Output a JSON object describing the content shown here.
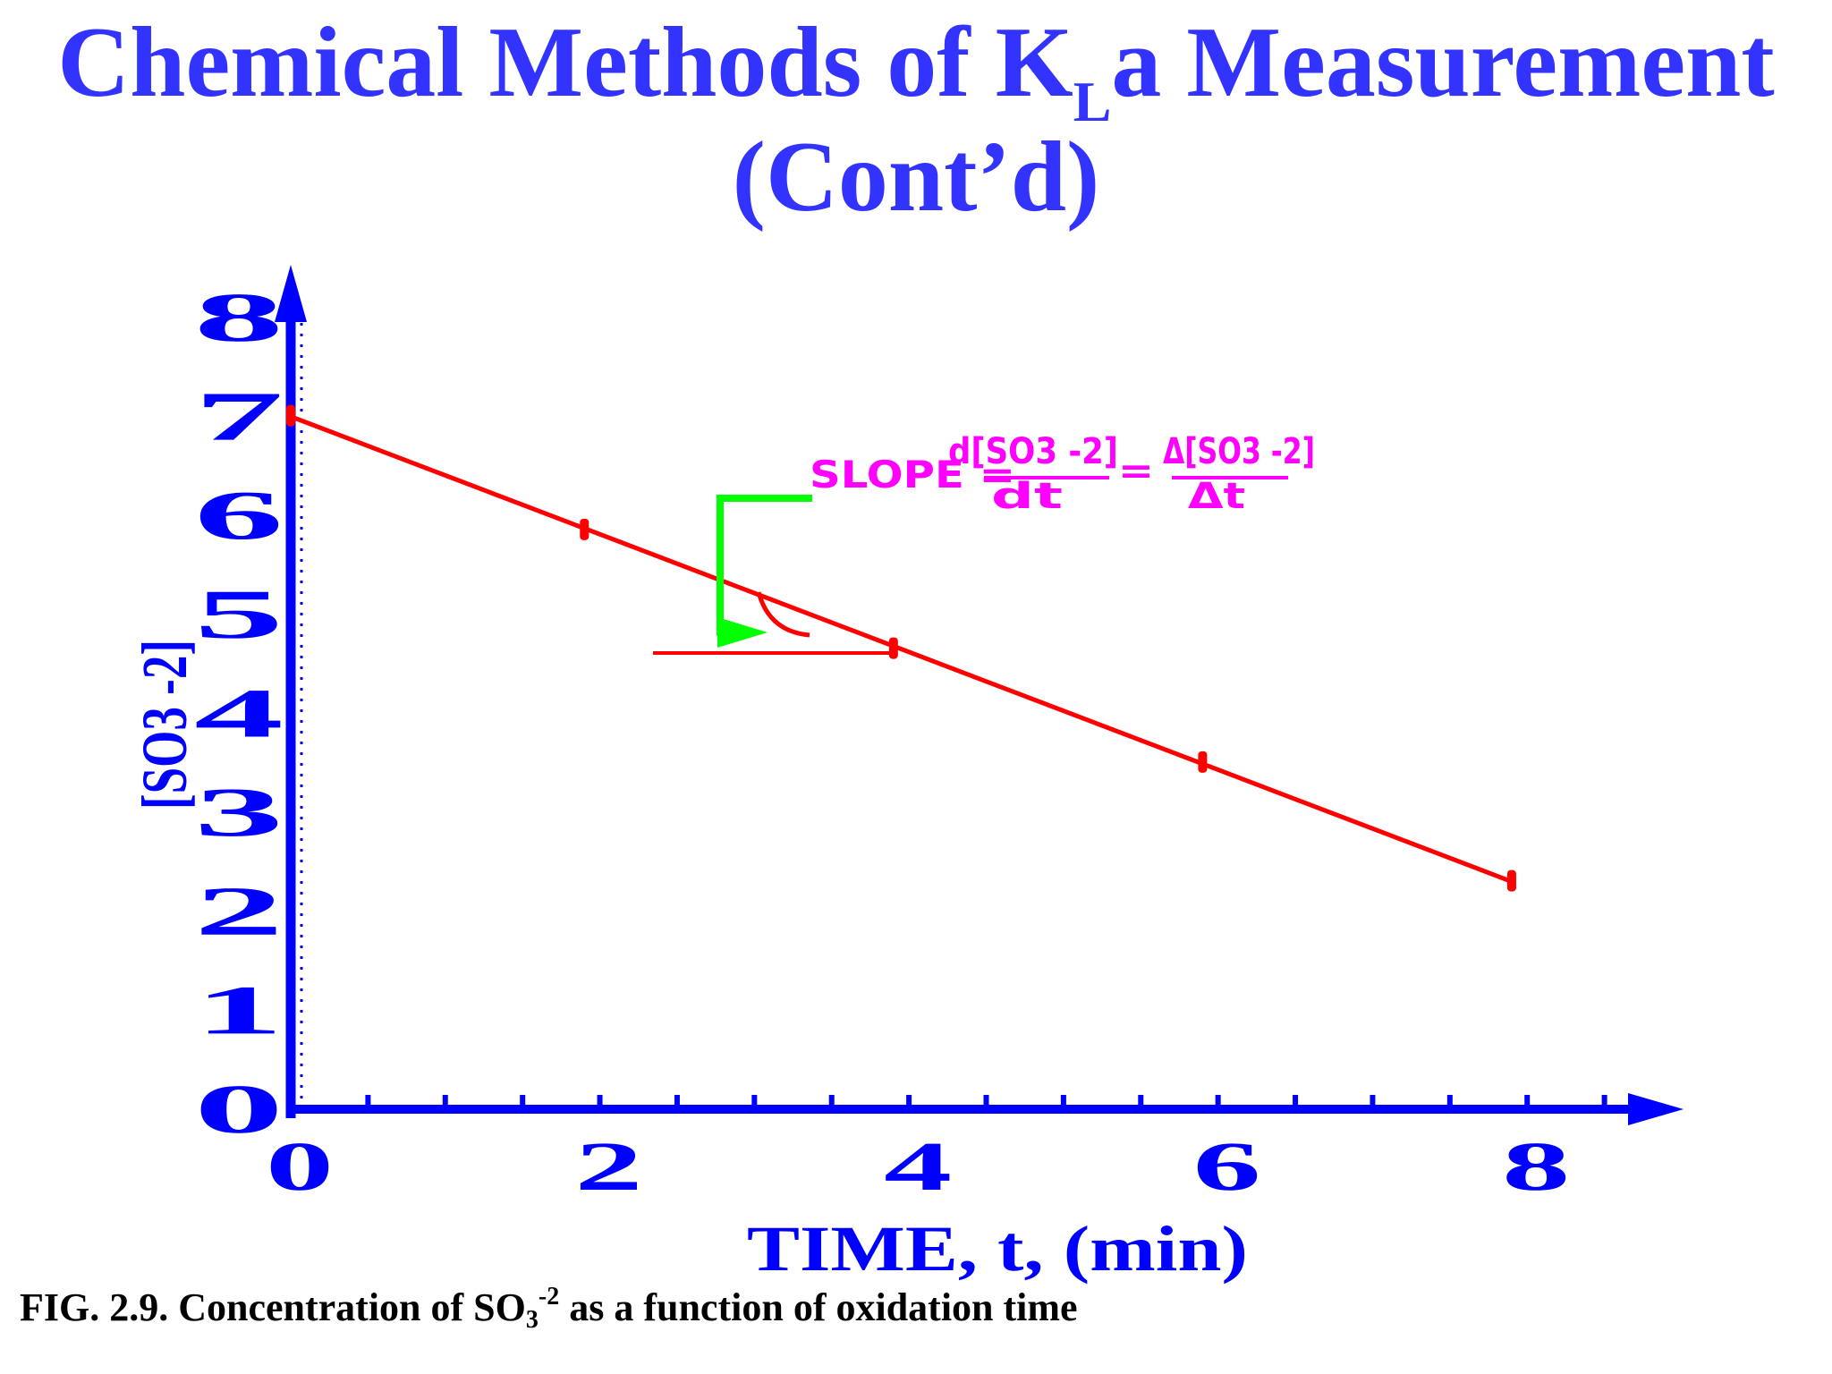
{
  "title": {
    "line1_pre": "Chemical Methods of K",
    "line1_sub": "L",
    "line1_post": "a Measurement",
    "line2": "(Cont’d)"
  },
  "caption": {
    "pre": "FIG. 2.9. Concentration of SO",
    "sub": "3",
    "sup": "-2",
    "post": " as a function of oxidation time"
  },
  "annotation": {
    "slope_label": "SLOPE = ",
    "num_left": "d[SO3 -2]",
    "den_left": "dt",
    "equals": "=",
    "num_right": "Δ[SO3 -2]",
    "den_right": "Δt"
  },
  "colors": {
    "axis": "#0000ff",
    "line": "#ff0000",
    "annotation": "#ff00ff",
    "arrow": "#00ff00",
    "title": "#3333ff"
  },
  "chart_data": {
    "type": "line",
    "xlabel": "TIME, t, (min)",
    "ylabel": "[SO3 -2]",
    "xlim": [
      0,
      9
    ],
    "ylim": [
      0,
      8
    ],
    "x_ticks": [
      "0",
      "2",
      "4",
      "6",
      "8"
    ],
    "y_ticks": [
      "0",
      "1",
      "2",
      "3",
      "4",
      "5",
      "6",
      "7",
      "8"
    ],
    "grid": false,
    "series": [
      {
        "points": [
          {
            "x": 0,
            "y": 7.0
          },
          {
            "x": 1.9,
            "y": 5.85
          },
          {
            "x": 3.9,
            "y": 4.65
          },
          {
            "x": 5.9,
            "y": 3.5
          },
          {
            "x": 7.9,
            "y": 2.3
          }
        ],
        "fit_line": [
          {
            "x": 0,
            "y": 7.0
          },
          {
            "x": 7.9,
            "y": 2.3
          }
        ]
      }
    ]
  }
}
